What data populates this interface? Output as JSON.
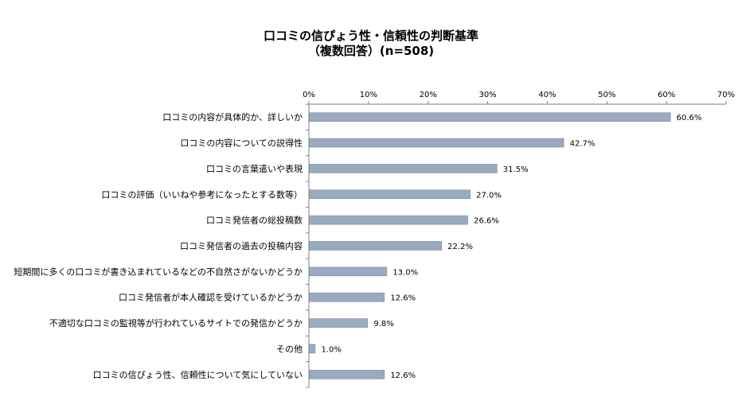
{
  "chart_data": {
    "type": "bar",
    "orientation": "horizontal",
    "title": "口コミの信ぴょう性・信頼性の判断基準",
    "subtitle": "（複数回答）(n=508)",
    "categories": [
      "口コミの内容が具体的か、詳しいか",
      "口コミの内容についての説得性",
      "口コミの言葉遣いや表現",
      "口コミの評価（いいねや参考になったとする数等）",
      "口コミ発信者の総投稿数",
      "口コミ発信者の過去の投稿内容",
      "短期間に多くの口コミが書き込まれているなどの不自然さがないかどうか",
      "口コミ発信者が本人確認を受けているかどうか",
      "不適切な口コミの監視等が行われているサイトでの発信かどうか",
      "その他",
      "口コミの信ぴょう性、信頼性について気にしていない"
    ],
    "values": [
      60.6,
      42.7,
      31.5,
      27.0,
      26.6,
      22.2,
      13.0,
      12.6,
      9.8,
      1.0,
      12.6
    ],
    "value_labels": [
      "60.6%",
      "42.7%",
      "31.5%",
      "27.0%",
      "26.6%",
      "22.2%",
      "13.0%",
      "12.6%",
      "9.8%",
      "1.0%",
      "12.6%"
    ],
    "xlim": [
      0,
      70
    ],
    "x_ticks": [
      "0%",
      "10%",
      "20%",
      "30%",
      "40%",
      "50%",
      "60%",
      "70%"
    ],
    "xlabel": "",
    "ylabel": "",
    "grid": false,
    "legend": "none",
    "colors": {
      "bar": "#9aaabf",
      "bar_edge": "#7f90a8",
      "axis": "#7f7f7f"
    }
  }
}
